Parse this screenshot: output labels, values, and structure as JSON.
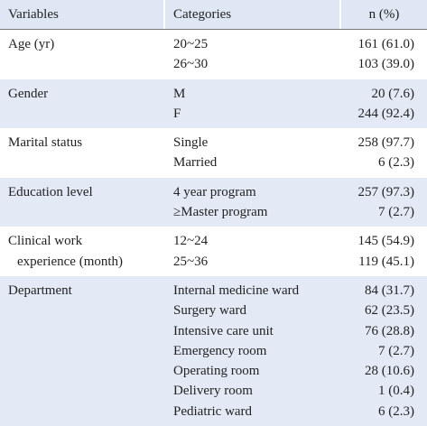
{
  "header": [
    "Variables",
    "Categories",
    "n (%)"
  ],
  "groups": [
    {
      "variable": [
        "Age (yr)"
      ],
      "rows": [
        {
          "category": "20~25",
          "value": "161 (61.0)"
        },
        {
          "category": "26~30",
          "value": "103 (39.0)"
        }
      ]
    },
    {
      "variable": [
        "Gender"
      ],
      "rows": [
        {
          "category": "M",
          "value": "20 (7.6)"
        },
        {
          "category": "F",
          "value": "244 (92.4)"
        }
      ]
    },
    {
      "variable": [
        "Marital status"
      ],
      "rows": [
        {
          "category": "Single",
          "value": "258 (97.7)"
        },
        {
          "category": "Married",
          "value": "6 (2.3)"
        }
      ]
    },
    {
      "variable": [
        "Education level"
      ],
      "rows": [
        {
          "category": "4 year program",
          "value": "257 (97.3)"
        },
        {
          "category": "≥Master program",
          "value": "7 (2.7)"
        }
      ]
    },
    {
      "variable": [
        "Clinical work",
        "experience (month)"
      ],
      "rows": [
        {
          "category": "12~24",
          "value": "145 (54.9)"
        },
        {
          "category": "25~36",
          "value": "119 (45.1)"
        }
      ]
    },
    {
      "variable": [
        "Department"
      ],
      "rows": [
        {
          "category": "Internal medicine ward",
          "value": "84 (31.7)"
        },
        {
          "category": "Surgery ward",
          "value": "62 (23.5)"
        },
        {
          "category": "Intensive care unit",
          "value": "76 (28.8)"
        },
        {
          "category": "Emergency room",
          "value": "7 (2.7)"
        },
        {
          "category": "Operating room",
          "value": "28 (10.6)"
        },
        {
          "category": "Delivery room",
          "value": "1 (0.4)"
        },
        {
          "category": "Pediatric ward",
          "value": "6 (2.3)"
        }
      ]
    }
  ]
}
